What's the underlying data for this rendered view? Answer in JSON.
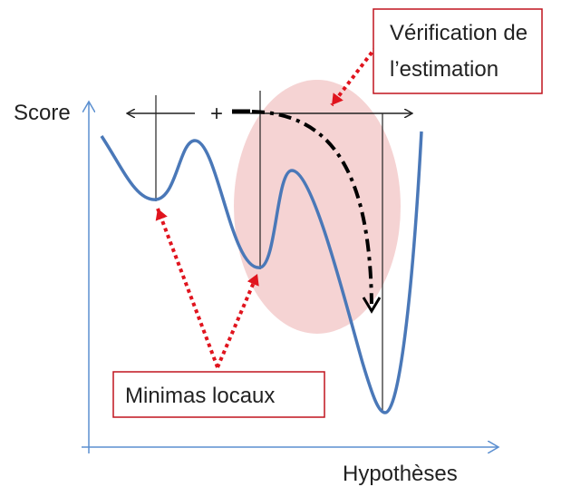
{
  "labels": {
    "y_axis": "Score",
    "x_axis": "Hypothèses",
    "verification": [
      "Vérification de",
      "l’estimation"
    ],
    "minima": "Minimas locaux",
    "plus": "+"
  }
}
